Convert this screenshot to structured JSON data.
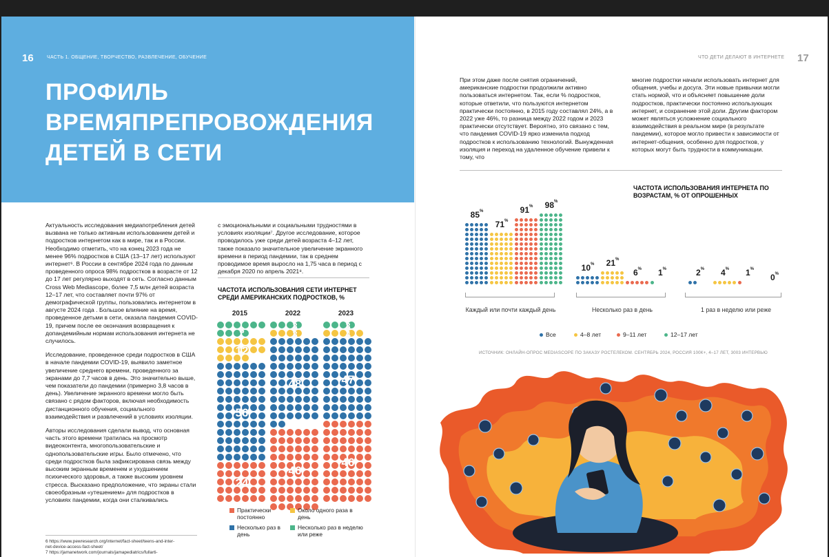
{
  "left": {
    "folio": "16",
    "running_head": "ЧАСТЬ 1. ОБЩЕНИЕ, ТВОРЧЕСТВО, РАЗВЛЕЧЕНИЕ, ОБУЧЕНИЕ",
    "title": "ПРОФИЛЬ ВРЕМЯПРЕПРОВОЖДЕНИЯ ДЕТЕЙ В СЕТИ",
    "col1": [
      "Актуальность исследования медиапотребления детей вызвана не только активным использованием детей и подростков интернетом как в мире, так и в России. Необходимо отметить, что на конец 2023 года не менее 96% подростков в США (13–17 лет) используют интернет⁶. В России в сентябре 2024 года по данным проведенного опроса 98% подростков в возрасте от 12 до 17 лет регулярно выходят в сеть. Согласно данным Cross Web Mediascope, более 7,5 млн детей возраста 12–17 лет, что составляет почти 97% от демографической группы, пользовались интернетом в августе 2024 года . Большое влияние на время, проведенное детьми в сети, оказала пандемия COVID-19, причем после ее окончания возвращения к допандемийным нормам использования интернета не случилось.",
      "Исследование, проведенное среди подростков в США в начале пандемии COVID-19, выявило заметное увеличение среднего времени, проведенного за экранами до 7,7 часов в день. Это значительно выше, чем показатели до пандемии (примерно 3,8 часов в день). Увеличение экранного времени могло быть связано с рядом факторов, включая необходимость дистанционного обучения, социального взаимодействия и развлечений в условиях изоляции.",
      "Авторы исследования сделали вывод, что основная часть этого времени тратилась на просмотр видеоконтента, многопользовательские и однопользовательские игры. Было отмечено, что среди подростков была зафиксирована связь между высоким экранным временем и ухудшением психического здоровья, а также высоким уровнем стресса. Высказано предположение, что экраны стали своеобразным «утешением» для подростков в условиях пандемии, когда они сталкивались"
    ],
    "col2": [
      "с эмоциональными и социальными трудностями в условиях изоляции⁷. Другое исследование, которое проводилось уже среди детей возраста 4–12 лет, также показало значительное увеличение экранного времени в период пандемии, так в среднем проводимое время выросло на 1,75 часа в период с декабря 2020 по апрель 2021⁸."
    ],
    "footnotes": [
      "6 https://www.pewresearch.org/internet/fact-sheet/teens-and-inter-",
      "net-device-access-fact-sheet/",
      "7 https://jamanetwork.com/journals/jamapediatrics/fullarti-"
    ]
  },
  "us_chart": {
    "title": "ЧАСТОТА ИСПОЛЬЗОВАНИЯ СЕТИ ИНТЕРНЕТ СРЕДИ АМЕРИКАНСКИХ ПОДРОСТКОВ, %",
    "legend": [
      {
        "label": "Практически постоянно",
        "color": "#ea6a4f"
      },
      {
        "label": "Около одного раза в день",
        "color": "#f5c542"
      },
      {
        "label": "Несколько раз в день",
        "color": "#2f72a8"
      },
      {
        "label": "Несколько раз в неделю или реже",
        "color": "#4cb58a"
      }
    ]
  },
  "right": {
    "folio": "17",
    "running_head": "ЧТО ДЕТИ ДЕЛАЮТ В ИНТЕРНЕТЕ",
    "col1": "При этом даже после снятия ограничений, американские подростки продолжили активно пользоваться интернетом. Так, если % подростков, которые ответили, что пользуются интернетом практически постоянно, в 2015 году составлял 24%, а в 2022 уже 46%, то разница между 2022 годом и 2023 практически отсутствует. Вероятно, это связано с тем, что пандемия COVID-19 ярко изменила подход подростков к использованию технологий. Вынужденная изоляция и переход на удаленное обучение привели к тому, что",
    "col2": "многие подростки начали использовать интернет для общения, учебы и досуга. Эти новые привычки могли стать нормой, что и объясняет повышение доли подростков, практически постоянно использующих интернет, и сохранение этой доли. Другим фактором может являться усложнение социального взаимодействия в реальном мире (в результате пандемии), которое могло привести к зависимости от интернет-общения, особенно для подростков, у которых могут быть трудности в коммуникации.",
    "source": "ИСТОЧНИК: ОНЛАЙН-ОПРОС MEDIASCOPE ПО ЗАКАЗУ РОСТЕЛЕКОМ. СЕНТЯБРЬ 2024, РОССИЯ 100К+, 4–17 ЛЕТ, 3003 ИНТЕРВЬЮ"
  },
  "age_chart": {
    "title": "ЧАСТОТА ИСПОЛЬЗОВАНИЯ ИНТЕРНЕТА ПО ВОЗРАСТАМ, % ОТ ОПРОШЕННЫХ",
    "groups": [
      {
        "label": "Каждый или почти каждый день"
      },
      {
        "label": "Несколько раз в день"
      },
      {
        "label": "1 раз в неделю или реже"
      }
    ],
    "legend": [
      {
        "label": "Все",
        "color": "#2f72a8"
      },
      {
        "label": "4–8 лет",
        "color": "#f5c542"
      },
      {
        "label": "9–11 лет",
        "color": "#ea6a4f"
      },
      {
        "label": "12–17 лет",
        "color": "#4cb58a"
      }
    ]
  },
  "chart_data": [
    {
      "type": "bar",
      "title": "ЧАСТОТА ИСПОЛЬЗОВАНИЯ СЕТИ ИНТЕРНЕТ СРЕДИ АМЕРИКАНСКИХ ПОДРОСТКОВ, %",
      "categories": [
        "2015",
        "2022",
        "2023"
      ],
      "stacked": true,
      "series": [
        {
          "name": "Практически постоянно",
          "values": [
            24,
            46,
            46
          ],
          "color": "#ea6a4f"
        },
        {
          "name": "Несколько раз в день",
          "values": [
            56,
            48,
            47
          ],
          "color": "#2f72a8"
        },
        {
          "name": "Около одного раза в день",
          "values": [
            12,
            3,
            4
          ],
          "color": "#f5c542"
        },
        {
          "name": "Несколько раз в неделю или реже",
          "values": [
            8,
            3,
            3
          ],
          "color": "#4cb58a"
        }
      ],
      "unit": "%"
    },
    {
      "type": "bar",
      "title": "ЧАСТОТА ИСПОЛЬЗОВАНИЯ ИНТЕРНЕТА ПО ВОЗРАСТАМ, % ОТ ОПРОШЕННЫХ",
      "categories": [
        "Каждый или почти каждый день",
        "Несколько раз в день",
        "1 раз в неделю или реже"
      ],
      "series": [
        {
          "name": "Все",
          "values": [
            85,
            10,
            2
          ],
          "color": "#2f72a8"
        },
        {
          "name": "4–8 лет",
          "values": [
            71,
            21,
            4
          ],
          "color": "#f5c542"
        },
        {
          "name": "9–11 лет",
          "values": [
            91,
            6,
            1
          ],
          "color": "#ea6a4f"
        },
        {
          "name": "12–17 лет",
          "values": [
            98,
            1,
            0
          ],
          "color": "#4cb58a"
        }
      ],
      "unit": "%"
    }
  ]
}
